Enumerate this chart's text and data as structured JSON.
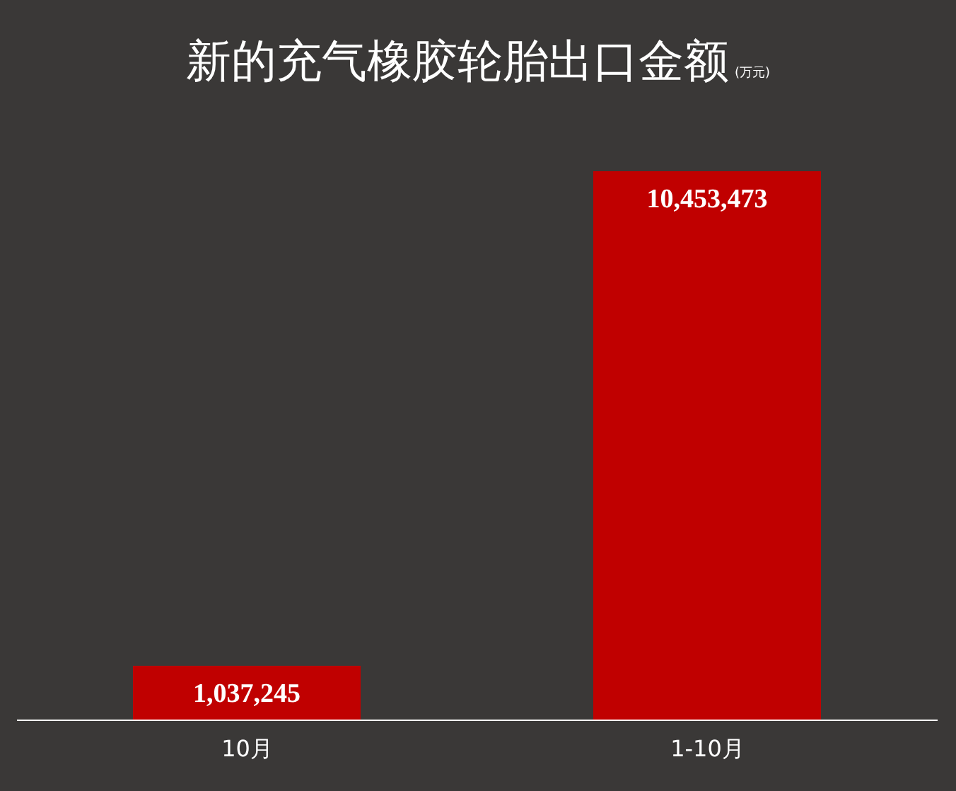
{
  "chart_data": {
    "type": "bar",
    "title": "新的充气橡胶轮胎出口金额",
    "subtitle": "(万元)",
    "categories": [
      "10月",
      "1-10月"
    ],
    "values": [
      1037245,
      10453473
    ],
    "color": "#c00000",
    "value_labels": [
      "1,037,245",
      "10,453,473"
    ],
    "grid": false,
    "legend": false
  }
}
